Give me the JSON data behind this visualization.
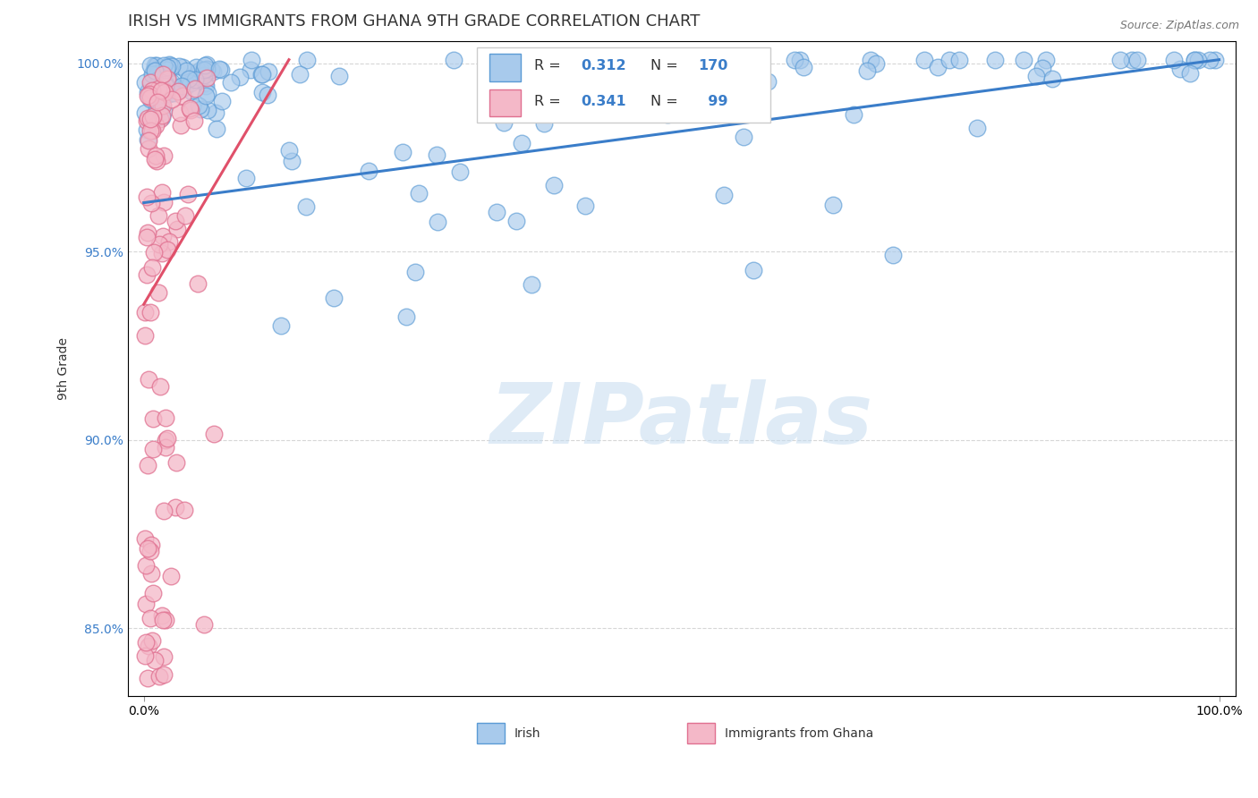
{
  "title": "IRISH VS IMMIGRANTS FROM GHANA 9TH GRADE CORRELATION CHART",
  "source_text": "Source: ZipAtlas.com",
  "ylabel": "9th Grade",
  "xlim": [
    -0.015,
    1.015
  ],
  "ylim": [
    0.832,
    1.006
  ],
  "x_ticks": [
    0.0,
    1.0
  ],
  "x_tick_labels": [
    "0.0%",
    "100.0%"
  ],
  "y_ticks": [
    0.85,
    0.9,
    0.95,
    1.0
  ],
  "y_tick_labels": [
    "85.0%",
    "90.0%",
    "95.0%",
    "100.0%"
  ],
  "blue_color": "#A8CAEC",
  "blue_edge": "#5B9BD5",
  "pink_color": "#F4B8C8",
  "pink_edge": "#E07090",
  "trend_blue": "#3A7DC9",
  "trend_pink": "#E0506A",
  "watermark": "ZIPatlas",
  "background_color": "#FFFFFF",
  "blue_trend_x": [
    0.0,
    1.0
  ],
  "blue_trend_y": [
    0.963,
    1.001
  ],
  "pink_trend_x": [
    0.0,
    0.135
  ],
  "pink_trend_y": [
    0.936,
    1.001
  ],
  "title_fontsize": 13,
  "axis_label_fontsize": 10,
  "tick_fontsize": 10,
  "legend_r_color": "#3A7DC9",
  "legend_n_color": "#3A7DC9"
}
